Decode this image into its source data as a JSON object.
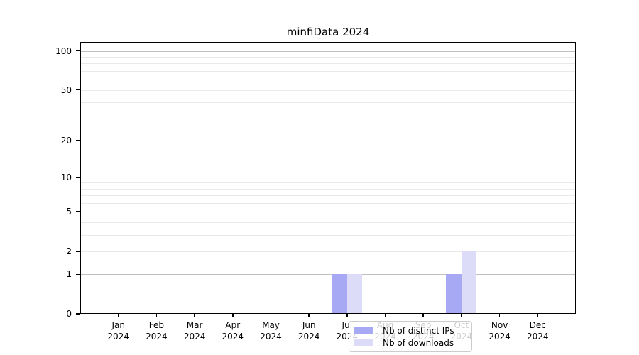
{
  "figure": {
    "background": "#ffffff"
  },
  "chart_data": {
    "type": "bar",
    "title": "minfiData 2024",
    "categories": [
      "Jan",
      "Feb",
      "Mar",
      "Apr",
      "May",
      "Jun",
      "Jul",
      "Aug",
      "Sep",
      "Oct",
      "Nov",
      "Dec"
    ],
    "category_year": "2024",
    "series": [
      {
        "name": "Nb of distinct IPs",
        "color": "#a8a9f4",
        "values": [
          0,
          0,
          0,
          0,
          0,
          0,
          1,
          0,
          0,
          1,
          0,
          0
        ]
      },
      {
        "name": "Nb of downloads",
        "color": "#dcdcf8",
        "values": [
          0,
          0,
          0,
          0,
          0,
          0,
          1,
          0,
          0,
          2,
          0,
          0
        ]
      }
    ],
    "yscale": "log1p",
    "ylim": [
      0,
      117
    ],
    "yticks": [
      0,
      1,
      2,
      5,
      10,
      20,
      50,
      100
    ],
    "grid": {
      "major_values": [
        1,
        10,
        100
      ],
      "minor_values": [
        2,
        3,
        4,
        5,
        6,
        7,
        8,
        9,
        20,
        30,
        40,
        50,
        60,
        70,
        80,
        90
      ],
      "major_color": "#bfbfbf",
      "minor_color": "#e9e9e9"
    },
    "legend_position": "lower center"
  },
  "colors": {
    "spine": "#000000",
    "text": "#000000",
    "legend_border": "#cccccc"
  }
}
